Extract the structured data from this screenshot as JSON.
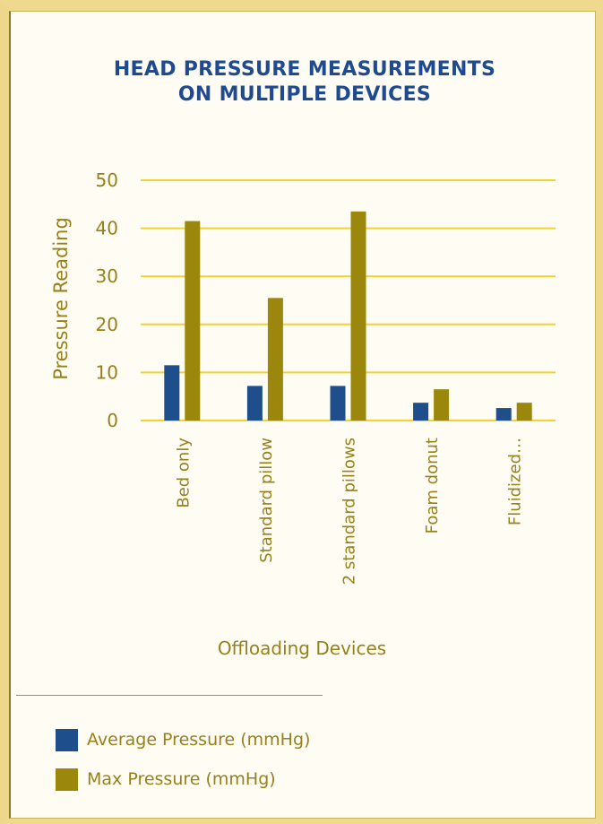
{
  "chart_data": {
    "type": "bar",
    "title_lines": [
      "HEAD PRESSURE MEASUREMENTS",
      "ON MULTIPLE DEVICES"
    ],
    "xlabel": "Offloading Devices",
    "ylabel": "Pressure Reading",
    "ylim": [
      0,
      50
    ],
    "yticks": [
      0,
      10,
      20,
      30,
      40,
      50
    ],
    "categories": [
      "Bed only",
      "Standard pillow",
      "2 standard pillows",
      "Foam donut",
      "Fluidized…"
    ],
    "series": [
      {
        "name": "Average Pressure (mmHg)",
        "color": "#1f4e8c",
        "values": [
          11.5,
          7.2,
          7.2,
          3.7,
          2.6
        ]
      },
      {
        "name": "Max Pressure (mmHg)",
        "color": "#9b870c",
        "values": [
          41.5,
          25.5,
          43.5,
          6.5,
          3.7
        ]
      }
    ],
    "grid": true,
    "gridline_color": "#f0d230",
    "legend_position": "bottom-left"
  }
}
